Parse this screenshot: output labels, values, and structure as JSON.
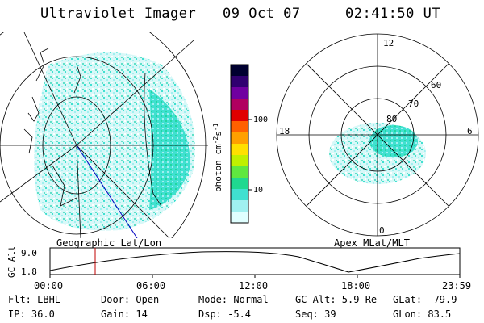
{
  "header": {
    "instrument": "Ultraviolet Imager",
    "date": "09 Oct 07",
    "time": "02:41:50 UT"
  },
  "colorbar": {
    "label": "photon cm",
    "label_exp": "-2",
    "label_mid": "s",
    "label_exp2": "-1",
    "ticks": [
      "100",
      "10"
    ],
    "ticks_values": [
      100,
      10
    ],
    "colors": [
      "#000030",
      "#300070",
      "#7000a0",
      "#b00060",
      "#e00000",
      "#ff6000",
      "#ffa000",
      "#ffe000",
      "#c0f000",
      "#60e840",
      "#20d890",
      "#40e0d0",
      "#a0f0f0",
      "#e0ffff"
    ]
  },
  "left_panel": {
    "caption": "Geographic Lat/Lon"
  },
  "right_panel": {
    "caption": "Apex MLat/MLT",
    "mlt_labels": {
      "top": "12",
      "right": "6",
      "bottom": "0",
      "left": "18"
    },
    "mlat_labels": [
      "60",
      "70",
      "80"
    ],
    "mlat_values": [
      60,
      70,
      80
    ]
  },
  "altitude_plot": {
    "ylabel": "GC Alt",
    "yticks": [
      "9.0",
      "1.8"
    ],
    "ytick_values": [
      9.0,
      1.8
    ],
    "xticks": [
      "00:00",
      "06:00",
      "12:00",
      "18:00",
      "23:59"
    ],
    "marker_time": "02:41:50"
  },
  "info": {
    "row1": [
      {
        "key": "Flt: LBHL"
      },
      {
        "key": "Door: Open"
      },
      {
        "key": "Mode: Normal"
      },
      {
        "key": "GC Alt: 5.9 Re"
      },
      {
        "key": "GLat: -79.9"
      }
    ],
    "row2": [
      {
        "key": "IP: 36.0"
      },
      {
        "key": "Gain: 14"
      },
      {
        "key": "Dsp:   -5.4"
      },
      {
        "key": "Seq: 39"
      },
      {
        "key": "GLon:  83.5"
      }
    ]
  }
}
